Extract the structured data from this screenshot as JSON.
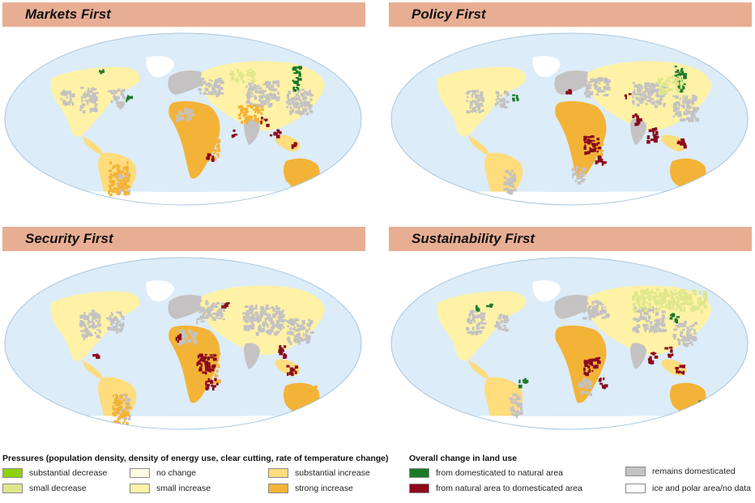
{
  "colors": {
    "ocean": "#dcecf8",
    "ocean_border": "#a9c6dc",
    "substantial_decrease": "#8fd10e",
    "small_decrease": "#dfe78b",
    "no_change": "#fffbe3",
    "small_increase": "#fff2a6",
    "substantial_increase": "#ffdc7c",
    "strong_increase": "#f3b337",
    "to_natural": "#1a7a2a",
    "to_domesticated": "#8b0a1c",
    "remains_domesticated": "#c4c2c2",
    "ice_no_data": "#ffffff"
  },
  "panels": [
    {
      "id": "markets",
      "title": "Markets First"
    },
    {
      "id": "policy",
      "title": "Policy First"
    },
    {
      "id": "security",
      "title": "Security First"
    },
    {
      "id": "sustainability",
      "title": "Sustainability First"
    }
  ],
  "legend_pressures": {
    "title": "Pressures (population density, density of energy use, clear cutting, rate of temperature change)",
    "items": [
      {
        "label": "substantial decrease",
        "color": "#8fd10e"
      },
      {
        "label": "small decrease",
        "color": "#dfe78b"
      },
      {
        "label": "no change",
        "color": "#fffbe3"
      },
      {
        "label": "small increase",
        "color": "#fff2a6"
      },
      {
        "label": "substantial increase",
        "color": "#ffdc7c"
      },
      {
        "label": "strong increase",
        "color": "#f3b337"
      }
    ]
  },
  "legend_landuse": {
    "title": "Overall change in land use",
    "items": [
      {
        "label": "from domesticated to natural area",
        "color": "#1a7a2a"
      },
      {
        "label": "from natural area to domesticated area",
        "color": "#8b0a1c"
      },
      {
        "label": "remains domesticated",
        "color": "#c4c2c2"
      },
      {
        "label": "ice and polar area/no data",
        "color": "#ffffff"
      }
    ]
  }
}
